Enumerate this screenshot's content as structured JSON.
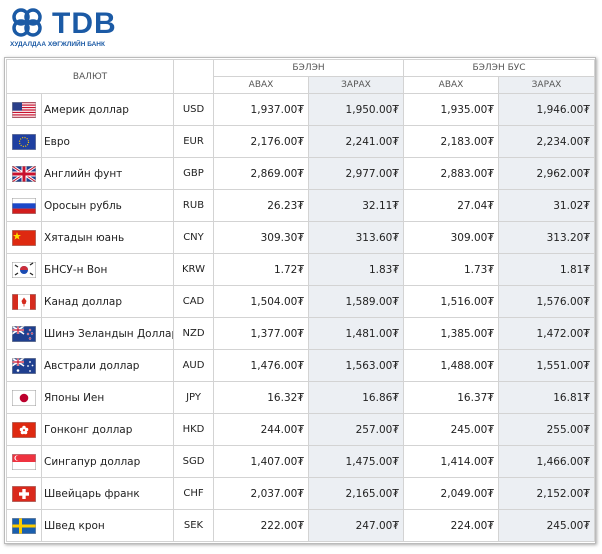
{
  "header": {
    "logo": "TDB",
    "subtitle": "ХУДАЛДАА ХӨГЖЛИЙН БАНК"
  },
  "table": {
    "columns": {
      "currency": "ВАЛЮТ",
      "cash": "БЭЛЭН",
      "noncash": "БЭЛЭН БУС",
      "buy": "АВАХ",
      "sell": "ЗАРАХ"
    },
    "rows": [
      [
        "Америк доллар",
        "USD",
        "1,937.00₮",
        "1,950.00₮",
        "1,935.00₮",
        "1,946.00₮"
      ],
      [
        "Евро",
        "EUR",
        "2,176.00₮",
        "2,241.00₮",
        "2,183.00₮",
        "2,234.00₮"
      ],
      [
        "Английн фунт",
        "GBP",
        "2,869.00₮",
        "2,977.00₮",
        "2,883.00₮",
        "2,962.00₮"
      ],
      [
        "Оросын рубль",
        "RUB",
        "26.23₮",
        "32.11₮",
        "27.04₮",
        "31.02₮"
      ],
      [
        "Хятадын юань",
        "CNY",
        "309.30₮",
        "313.60₮",
        "309.00₮",
        "313.20₮"
      ],
      [
        "БНСУ-н Вон",
        "KRW",
        "1.72₮",
        "1.83₮",
        "1.73₮",
        "1.81₮"
      ],
      [
        "Канад доллар",
        "CAD",
        "1,504.00₮",
        "1,589.00₮",
        "1,516.00₮",
        "1,576.00₮"
      ],
      [
        "Шинэ Зеландын Доллар",
        "NZD",
        "1,377.00₮",
        "1,481.00₮",
        "1,385.00₮",
        "1,472.00₮"
      ],
      [
        "Австрали доллар",
        "AUD",
        "1,476.00₮",
        "1,563.00₮",
        "1,488.00₮",
        "1,551.00₮"
      ],
      [
        "Японы Иен",
        "JPY",
        "16.32₮",
        "16.86₮",
        "16.37₮",
        "16.81₮"
      ],
      [
        "Гонконг доллар",
        "HKD",
        "244.00₮",
        "257.00₮",
        "245.00₮",
        "255.00₮"
      ],
      [
        "Сингапур доллар",
        "SGD",
        "1,407.00₮",
        "1,475.00₮",
        "1,414.00₮",
        "1,466.00₮"
      ],
      [
        "Швейцарь франк",
        "CHF",
        "2,037.00₮",
        "2,165.00₮",
        "2,049.00₮",
        "2,152.00₮"
      ],
      [
        "Швед крон",
        "SEK",
        "222.00₮",
        "247.00₮",
        "224.00₮",
        "245.00₮"
      ]
    ]
  }
}
